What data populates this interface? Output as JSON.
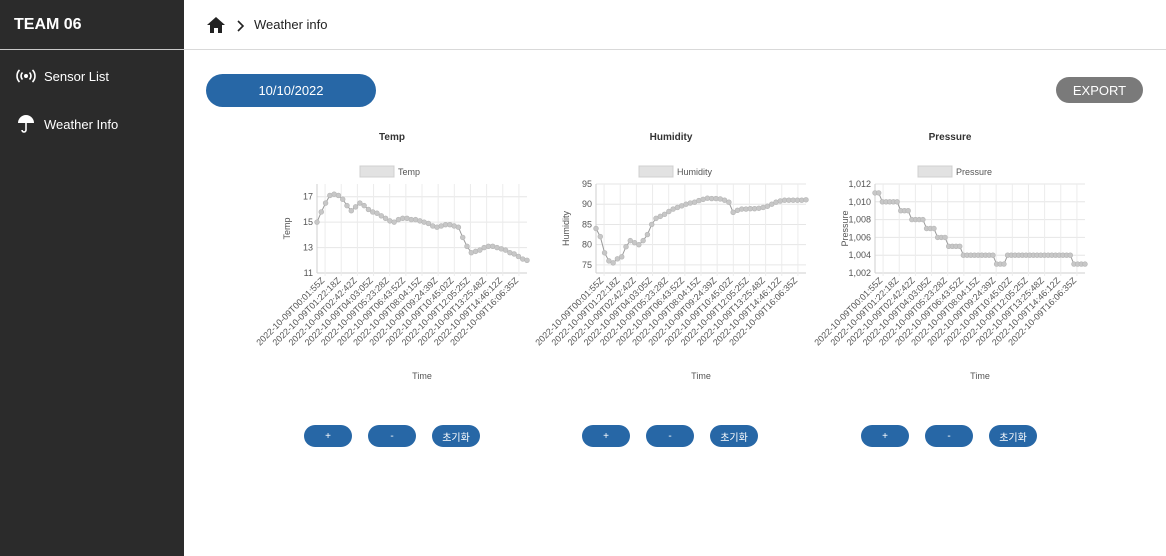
{
  "app": {
    "brand": "TEAM 06"
  },
  "sidebar": {
    "items": [
      {
        "label": "Sensor List",
        "icon": "sensor-broadcast-icon"
      },
      {
        "label": "Weather Info",
        "icon": "umbrella-icon"
      }
    ]
  },
  "breadcrumb": {
    "current": "Weather info"
  },
  "toolbar": {
    "date": "10/10/2022",
    "export_label": "EXPORT"
  },
  "controls": {
    "zoom_in": "+",
    "zoom_out": "-",
    "reset": "초기화"
  },
  "colors": {
    "primary": "#2767a6",
    "sidebar": "#2b2b2b",
    "export": "#7a7a7a",
    "series_point": "#c7c7c7",
    "series_line": "#9a9a9a"
  },
  "chart_data": [
    {
      "type": "line",
      "title": "Temp",
      "xlabel": "Time",
      "ylabel": "Temp",
      "legend": "Temp",
      "ylim": [
        11,
        18
      ],
      "yticks": [
        "17",
        "15",
        "13",
        "11"
      ],
      "ytick_values": [
        17,
        15,
        13,
        11
      ],
      "xticks": [
        "2022-10-09T00:01:55Z",
        "2022-10-09T01:22:18Z",
        "2022-10-09T02:42:42Z",
        "2022-10-09T04:03:05Z",
        "2022-10-09T05:23:28Z",
        "2022-10-09T06:43:52Z",
        "2022-10-09T08:04:15Z",
        "2022-10-09T09:24:39Z",
        "2022-10-09T10:45:02Z",
        "2022-10-09T12:05:25Z",
        "2022-10-09T13:25:48Z",
        "2022-10-09T14:46:12Z",
        "2022-10-09T16:06:35Z"
      ],
      "values": [
        15.0,
        15.8,
        16.5,
        17.1,
        17.2,
        17.1,
        16.8,
        16.3,
        15.9,
        16.2,
        16.5,
        16.3,
        16.0,
        15.8,
        15.7,
        15.5,
        15.3,
        15.1,
        15.0,
        15.2,
        15.3,
        15.3,
        15.2,
        15.2,
        15.1,
        15.0,
        14.9,
        14.7,
        14.6,
        14.7,
        14.8,
        14.8,
        14.7,
        14.6,
        13.8,
        13.1,
        12.6,
        12.7,
        12.8,
        13.0,
        13.1,
        13.1,
        13.0,
        12.9,
        12.8,
        12.6,
        12.5,
        12.3,
        12.1,
        12.0
      ]
    },
    {
      "type": "line",
      "title": "Humidity",
      "xlabel": "Time",
      "ylabel": "Humidity",
      "legend": "Humidity",
      "ylim": [
        73,
        95
      ],
      "yticks": [
        "95",
        "90",
        "85",
        "80",
        "75"
      ],
      "ytick_values": [
        95,
        90,
        85,
        80,
        75
      ],
      "xticks": [
        "2022-10-09T00:01:55Z",
        "2022-10-09T01:22:18Z",
        "2022-10-09T02:42:42Z",
        "2022-10-09T04:03:05Z",
        "2022-10-09T05:23:28Z",
        "2022-10-09T06:43:52Z",
        "2022-10-09T08:04:15Z",
        "2022-10-09T09:24:39Z",
        "2022-10-09T10:45:02Z",
        "2022-10-09T12:05:25Z",
        "2022-10-09T13:25:48Z",
        "2022-10-09T14:46:12Z",
        "2022-10-09T16:06:35Z"
      ],
      "values": [
        84.0,
        82.0,
        78.0,
        76.0,
        75.5,
        76.5,
        77.0,
        79.5,
        81.0,
        80.5,
        80.0,
        81.0,
        82.5,
        85.0,
        86.5,
        87.0,
        87.5,
        88.2,
        88.8,
        89.2,
        89.6,
        90.0,
        90.3,
        90.5,
        90.9,
        91.2,
        91.5,
        91.4,
        91.4,
        91.3,
        91.0,
        90.5,
        88.0,
        88.5,
        88.8,
        88.8,
        88.9,
        88.9,
        89.0,
        89.2,
        89.5,
        90.0,
        90.5,
        90.8,
        91.0,
        91.0,
        91.0,
        91.0,
        91.0,
        91.1
      ]
    },
    {
      "type": "line",
      "title": "Pressure",
      "xlabel": "Time",
      "ylabel": "Pressure",
      "legend": "Pressure",
      "ylim": [
        1002,
        1012
      ],
      "yticks": [
        "1,012",
        "1,010",
        "1,008",
        "1,006",
        "1,004",
        "1,002"
      ],
      "ytick_values": [
        1012,
        1010,
        1008,
        1006,
        1004,
        1002
      ],
      "xticks": [
        "2022-10-09T00:01:55Z",
        "2022-10-09T01:22:18Z",
        "2022-10-09T02:42:42Z",
        "2022-10-09T04:03:05Z",
        "2022-10-09T05:23:28Z",
        "2022-10-09T06:43:52Z",
        "2022-10-09T08:04:15Z",
        "2022-10-09T09:24:39Z",
        "2022-10-09T10:45:02Z",
        "2022-10-09T12:05:25Z",
        "2022-10-09T13:25:48Z",
        "2022-10-09T14:46:12Z",
        "2022-10-09T16:06:35Z"
      ],
      "values": [
        1011,
        1011,
        1010,
        1010,
        1010,
        1010,
        1010,
        1009,
        1009,
        1009,
        1008,
        1008,
        1008,
        1008,
        1007,
        1007,
        1007,
        1006,
        1006,
        1006,
        1005,
        1005,
        1005,
        1005,
        1004,
        1004,
        1004,
        1004,
        1004,
        1004,
        1004,
        1004,
        1004,
        1003,
        1003,
        1003,
        1004,
        1004,
        1004,
        1004,
        1004,
        1004,
        1004,
        1004,
        1004,
        1004,
        1004,
        1004,
        1004,
        1004,
        1004,
        1004,
        1004,
        1004,
        1003,
        1003,
        1003,
        1003
      ]
    }
  ]
}
